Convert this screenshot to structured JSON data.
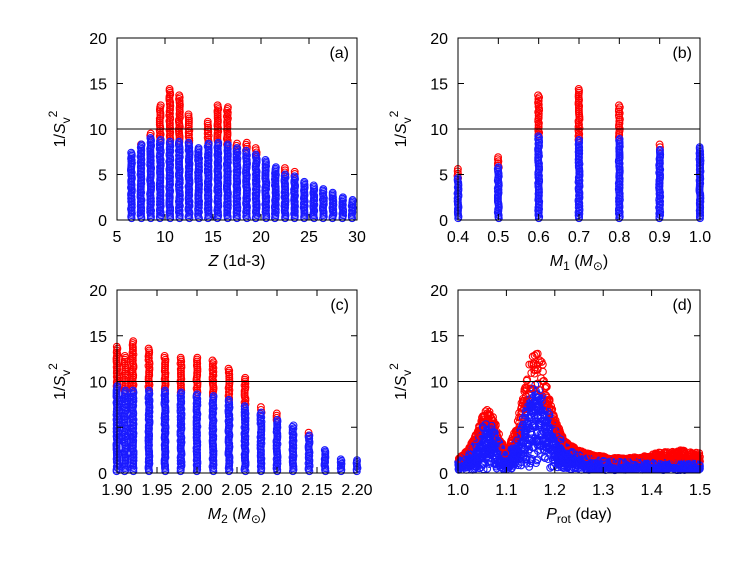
{
  "chart_data": [
    {
      "type": "scatter",
      "panel_label": "(a)",
      "xlabel": {
        "symbol": "Z",
        "rest": " (1d-3)"
      },
      "ylabel": "1/Sv^2",
      "xlim": [
        5,
        30
      ],
      "ylim": [
        0,
        20
      ],
      "xticks": [
        5,
        10,
        15,
        20,
        25,
        30
      ],
      "yticks": [
        0,
        5,
        10,
        15,
        20
      ],
      "hline": 10,
      "columns": [
        {
          "x": 6.5,
          "blue_min": 0.2,
          "blue_max": 7.4,
          "red_max": 7.4
        },
        {
          "x": 7.5,
          "blue_min": 0.2,
          "blue_max": 8.3,
          "red_max": 8.6
        },
        {
          "x": 8.5,
          "blue_min": 0.2,
          "blue_max": 9.0,
          "red_max": 9.5
        },
        {
          "x": 9.5,
          "blue_min": 0.2,
          "blue_max": 8.8,
          "red_max": 12.6
        },
        {
          "x": 10.5,
          "blue_min": 0.2,
          "blue_max": 8.6,
          "red_max": 14.4
        },
        {
          "x": 11.5,
          "blue_min": 0.2,
          "blue_max": 8.6,
          "red_max": 13.7
        },
        {
          "x": 12.5,
          "blue_min": 0.2,
          "blue_max": 8.5,
          "red_max": 11.6
        },
        {
          "x": 13.5,
          "blue_min": 0.2,
          "blue_max": 7.9,
          "red_max": 8.0
        },
        {
          "x": 14.5,
          "blue_min": 0.2,
          "blue_max": 8.4,
          "red_max": 10.8
        },
        {
          "x": 15.5,
          "blue_min": 0.2,
          "blue_max": 8.5,
          "red_max": 12.6
        },
        {
          "x": 16.5,
          "blue_min": 0.2,
          "blue_max": 8.3,
          "red_max": 12.4
        },
        {
          "x": 17.5,
          "blue_min": 0.2,
          "blue_max": 7.9,
          "red_max": 8.4
        },
        {
          "x": 18.5,
          "blue_min": 0.2,
          "blue_max": 7.6,
          "red_max": 8.5
        },
        {
          "x": 19.5,
          "blue_min": 0.2,
          "blue_max": 7.2,
          "red_max": 7.9
        },
        {
          "x": 20.5,
          "blue_min": 0.2,
          "blue_max": 6.6,
          "red_max": 6.6
        },
        {
          "x": 21.5,
          "blue_min": 0.2,
          "blue_max": 5.8,
          "red_max": 5.8
        },
        {
          "x": 22.5,
          "blue_min": 0.2,
          "blue_max": 5.0,
          "red_max": 5.7
        },
        {
          "x": 23.5,
          "blue_min": 0.2,
          "blue_max": 4.8,
          "red_max": 5.3
        },
        {
          "x": 24.5,
          "blue_min": 0.2,
          "blue_max": 4.2,
          "red_max": 4.2
        },
        {
          "x": 25.5,
          "blue_min": 0.2,
          "blue_max": 3.8,
          "red_max": 3.8
        },
        {
          "x": 26.5,
          "blue_min": 0.2,
          "blue_max": 3.4,
          "red_max": 3.4
        },
        {
          "x": 27.5,
          "blue_min": 0.2,
          "blue_max": 3.0,
          "red_max": 3.0
        },
        {
          "x": 28.5,
          "blue_min": 0.2,
          "blue_max": 2.5,
          "red_max": 2.5
        },
        {
          "x": 29.5,
          "blue_min": 0.2,
          "blue_max": 2.2,
          "red_max": 2.2
        }
      ]
    },
    {
      "type": "scatter",
      "panel_label": "(b)",
      "xlabel": {
        "symbol": "M",
        "sub": "1",
        "rest": " (M",
        "sub2": "⊙",
        "end": ")"
      },
      "ylabel": "1/Sv^2",
      "xlim": [
        0.4,
        1.0
      ],
      "ylim": [
        0,
        20
      ],
      "xticks": [
        0.4,
        0.5,
        0.6,
        0.7,
        0.8,
        0.9,
        1.0
      ],
      "yticks": [
        0,
        5,
        10,
        15,
        20
      ],
      "hline": 10,
      "columns": [
        {
          "x": 0.4,
          "blue_min": 0.2,
          "blue_max": 4.6,
          "red_max": 5.6
        },
        {
          "x": 0.5,
          "blue_min": 0.2,
          "blue_max": 5.8,
          "red_max": 6.9
        },
        {
          "x": 0.6,
          "blue_min": 0.2,
          "blue_max": 9.2,
          "red_max": 13.7
        },
        {
          "x": 0.7,
          "blue_min": 0.2,
          "blue_max": 8.8,
          "red_max": 14.4
        },
        {
          "x": 0.8,
          "blue_min": 0.2,
          "blue_max": 8.9,
          "red_max": 12.6
        },
        {
          "x": 0.9,
          "blue_min": 0.2,
          "blue_max": 7.7,
          "red_max": 8.3
        },
        {
          "x": 1.0,
          "blue_min": 0.2,
          "blue_max": 8.0,
          "red_max": 8.0
        }
      ]
    },
    {
      "type": "scatter",
      "panel_label": "(c)",
      "xlabel": {
        "symbol": "M",
        "sub": "2",
        "rest": " (M",
        "sub2": "⊙",
        "end": ")"
      },
      "ylabel": "1/Sv^2",
      "xlim": [
        1.9,
        2.2
      ],
      "ylim": [
        0,
        20
      ],
      "xticks": [
        1.9,
        1.95,
        2.0,
        2.05,
        2.1,
        2.15,
        2.2
      ],
      "yticks": [
        0,
        5,
        10,
        15,
        20
      ],
      "hline": 10,
      "columns": [
        {
          "x": 1.9,
          "blue_min": 0.2,
          "blue_max": 9.5,
          "red_max": 13.8
        },
        {
          "x": 1.91,
          "blue_min": 0.2,
          "blue_max": 9.0,
          "red_max": 12.8
        },
        {
          "x": 1.92,
          "blue_min": 0.2,
          "blue_max": 9.0,
          "red_max": 14.4
        },
        {
          "x": 1.94,
          "blue_min": 0.2,
          "blue_max": 9.0,
          "red_max": 13.6
        },
        {
          "x": 1.96,
          "blue_min": 0.2,
          "blue_max": 9.0,
          "red_max": 12.8
        },
        {
          "x": 1.98,
          "blue_min": 0.2,
          "blue_max": 8.8,
          "red_max": 12.6
        },
        {
          "x": 2.0,
          "blue_min": 0.2,
          "blue_max": 8.6,
          "red_max": 12.6
        },
        {
          "x": 2.02,
          "blue_min": 0.2,
          "blue_max": 8.4,
          "red_max": 12.3
        },
        {
          "x": 2.04,
          "blue_min": 0.2,
          "blue_max": 8.0,
          "red_max": 11.4
        },
        {
          "x": 2.06,
          "blue_min": 0.2,
          "blue_max": 7.3,
          "red_max": 10.4
        },
        {
          "x": 2.08,
          "blue_min": 0.2,
          "blue_max": 6.6,
          "red_max": 7.2
        },
        {
          "x": 2.1,
          "blue_min": 0.2,
          "blue_max": 5.8,
          "red_max": 6.5
        },
        {
          "x": 2.12,
          "blue_min": 0.2,
          "blue_max": 5.2,
          "red_max": 5.3
        },
        {
          "x": 2.14,
          "blue_min": 0.2,
          "blue_max": 4.1,
          "red_max": 4.4
        },
        {
          "x": 2.16,
          "blue_min": 0.2,
          "blue_max": 2.5,
          "red_max": 2.5
        },
        {
          "x": 2.18,
          "blue_min": 0.2,
          "blue_max": 1.5,
          "red_max": 1.5
        },
        {
          "x": 2.2,
          "blue_min": 0.2,
          "blue_max": 1.4,
          "red_max": 1.4
        }
      ]
    },
    {
      "type": "scatter",
      "panel_label": "(d)",
      "xlabel": {
        "symbol": "P",
        "sub": "rot",
        "rest": " (day)"
      },
      "ylabel": "1/Sv^2",
      "xlim": [
        1.0,
        1.5
      ],
      "ylim": [
        0,
        20
      ],
      "xticks": [
        1.0,
        1.1,
        1.2,
        1.3,
        1.4,
        1.5
      ],
      "yticks": [
        0,
        5,
        10,
        15,
        20
      ],
      "hline": 10,
      "envelope": {
        "x": [
          1.0,
          1.02,
          1.04,
          1.05,
          1.06,
          1.07,
          1.08,
          1.1,
          1.12,
          1.14,
          1.15,
          1.16,
          1.17,
          1.18,
          1.19,
          1.2,
          1.22,
          1.24,
          1.26,
          1.28,
          1.3,
          1.34,
          1.38,
          1.42,
          1.46,
          1.5
        ],
        "blue_max": [
          1.4,
          2.0,
          3.5,
          5.0,
          5.8,
          5.2,
          4.0,
          1.8,
          3.5,
          7.0,
          8.5,
          9.8,
          9.0,
          8.0,
          6.5,
          5.0,
          3.0,
          2.2,
          1.8,
          1.5,
          1.4,
          1.2,
          1.2,
          1.1,
          1.1,
          1.0
        ],
        "red_max": [
          1.5,
          2.5,
          4.5,
          6.2,
          7.0,
          6.5,
          5.0,
          2.2,
          5.0,
          10.0,
          12.8,
          14.4,
          13.0,
          11.0,
          8.0,
          6.0,
          3.5,
          2.8,
          2.3,
          2.0,
          1.8,
          1.6,
          1.8,
          2.3,
          2.5,
          2.2
        ]
      }
    }
  ],
  "colors": {
    "red": "#ff0000",
    "blue": "#1a1aff",
    "axis": "#000000"
  }
}
